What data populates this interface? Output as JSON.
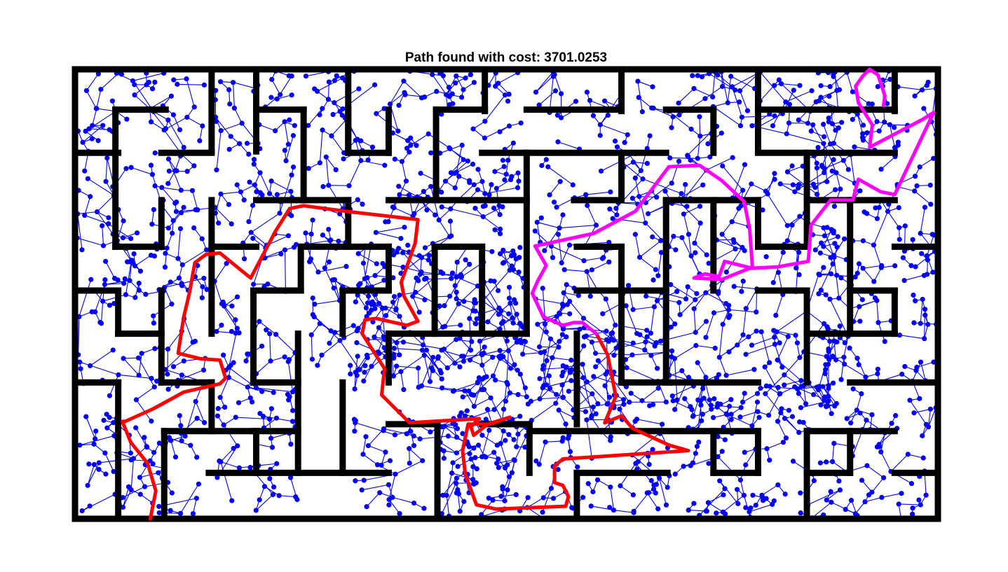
{
  "chart_data": {
    "type": "scatter",
    "title": "Path found with cost: 3701.0253",
    "xlabel": "",
    "ylabel": "",
    "xlim": [
      0,
      1238
    ],
    "ylim": [
      0,
      646
    ],
    "grid": false,
    "colors": {
      "walls": "#000000",
      "tree": "#0000ff",
      "path_start": "#ff0000",
      "path_goal": "#ff00ff"
    },
    "maze_walls": [
      [
        [
          0,
          0
        ],
        [
          1238,
          0
        ]
      ],
      [
        [
          0,
          646
        ],
        [
          1238,
          646
        ]
      ],
      [
        [
          0,
          0
        ],
        [
          0,
          646
        ]
      ],
      [
        [
          1238,
          0
        ],
        [
          1238,
          646
        ]
      ],
      [
        [
          196,
          0
        ],
        [
          196,
          118
        ]
      ],
      [
        [
          260,
          0
        ],
        [
          260,
          118
        ]
      ],
      [
        [
          392,
          0
        ],
        [
          392,
          118
        ]
      ],
      [
        [
          588,
          0
        ],
        [
          588,
          60
        ]
      ],
      [
        [
          784,
          0
        ],
        [
          784,
          60
        ]
      ],
      [
        [
          980,
          0
        ],
        [
          980,
          118
        ]
      ],
      [
        [
          1176,
          0
        ],
        [
          1176,
          60
        ]
      ],
      [
        [
          0,
          120
        ],
        [
          62,
          120
        ]
      ],
      [
        [
          58,
          58
        ],
        [
          130,
          58
        ]
      ],
      [
        [
          58,
          58
        ],
        [
          58,
          255
        ]
      ],
      [
        [
          124,
          120
        ],
        [
          196,
          120
        ]
      ],
      [
        [
          260,
          58
        ],
        [
          328,
          58
        ]
      ],
      [
        [
          328,
          58
        ],
        [
          328,
          188
        ]
      ],
      [
        [
          392,
          58
        ],
        [
          392,
          120
        ]
      ],
      [
        [
          450,
          58
        ],
        [
          450,
          120
        ]
      ],
      [
        [
          392,
          120
        ],
        [
          450,
          120
        ]
      ],
      [
        [
          518,
          58
        ],
        [
          588,
          58
        ]
      ],
      [
        [
          518,
          58
        ],
        [
          518,
          188
        ]
      ],
      [
        [
          648,
          58
        ],
        [
          784,
          58
        ]
      ],
      [
        [
          980,
          58
        ],
        [
          1176,
          58
        ]
      ],
      [
        [
          848,
          58
        ],
        [
          916,
          58
        ]
      ],
      [
        [
          916,
          58
        ],
        [
          916,
          120
        ]
      ],
      [
        [
          584,
          120
        ],
        [
          848,
          120
        ]
      ],
      [
        [
          784,
          120
        ],
        [
          784,
          188
        ]
      ],
      [
        [
          980,
          120
        ],
        [
          1176,
          120
        ]
      ],
      [
        [
          1050,
          120
        ],
        [
          1050,
          250
        ]
      ],
      [
        [
          124,
          188
        ],
        [
          124,
          255
        ]
      ],
      [
        [
          196,
          188
        ],
        [
          196,
          255
        ]
      ],
      [
        [
          58,
          255
        ],
        [
          124,
          255
        ]
      ],
      [
        [
          196,
          255
        ],
        [
          260,
          255
        ]
      ],
      [
        [
          260,
          188
        ],
        [
          392,
          188
        ]
      ],
      [
        [
          392,
          188
        ],
        [
          392,
          255
        ]
      ],
      [
        [
          450,
          188
        ],
        [
          648,
          188
        ]
      ],
      [
        [
          648,
          120
        ],
        [
          648,
          380
        ]
      ],
      [
        [
          716,
          188
        ],
        [
          784,
          188
        ]
      ],
      [
        [
          848,
          188
        ],
        [
          848,
          250
        ]
      ],
      [
        [
          848,
          188
        ],
        [
          980,
          188
        ]
      ],
      [
        [
          980,
          188
        ],
        [
          980,
          250
        ]
      ],
      [
        [
          1050,
          188
        ],
        [
          1176,
          188
        ]
      ],
      [
        [
          1112,
          188
        ],
        [
          1112,
          380
        ]
      ],
      [
        [
          0,
          318
        ],
        [
          62,
          318
        ]
      ],
      [
        [
          62,
          318
        ],
        [
          62,
          380
        ]
      ],
      [
        [
          124,
          318
        ],
        [
          124,
          450
        ]
      ],
      [
        [
          196,
          255
        ],
        [
          196,
          318
        ]
      ],
      [
        [
          324,
          255
        ],
        [
          450,
          255
        ]
      ],
      [
        [
          324,
          255
        ],
        [
          324,
          318
        ]
      ],
      [
        [
          450,
          255
        ],
        [
          450,
          318
        ]
      ],
      [
        [
          516,
          255
        ],
        [
          516,
          380
        ]
      ],
      [
        [
          516,
          255
        ],
        [
          584,
          255
        ]
      ],
      [
        [
          584,
          255
        ],
        [
          584,
          380
        ]
      ],
      [
        [
          720,
          255
        ],
        [
          784,
          255
        ]
      ],
      [
        [
          784,
          255
        ],
        [
          784,
          450
        ]
      ],
      [
        [
          848,
          255
        ],
        [
          848,
          318
        ]
      ],
      [
        [
          720,
          318
        ],
        [
          848,
          318
        ]
      ],
      [
        [
          916,
          188
        ],
        [
          916,
          318
        ]
      ],
      [
        [
          980,
          255
        ],
        [
          1050,
          255
        ]
      ],
      [
        [
          1176,
          255
        ],
        [
          1238,
          255
        ]
      ],
      [
        [
          1112,
          318
        ],
        [
          1176,
          318
        ]
      ],
      [
        [
          1176,
          318
        ],
        [
          1176,
          380
        ]
      ],
      [
        [
          62,
          380
        ],
        [
          124,
          380
        ]
      ],
      [
        [
          196,
          318
        ],
        [
          196,
          380
        ]
      ],
      [
        [
          256,
          318
        ],
        [
          324,
          318
        ]
      ],
      [
        [
          256,
          318
        ],
        [
          256,
          450
        ]
      ],
      [
        [
          384,
          318
        ],
        [
          450,
          318
        ]
      ],
      [
        [
          384,
          318
        ],
        [
          384,
          380
        ]
      ],
      [
        [
          450,
          380
        ],
        [
          648,
          380
        ]
      ],
      [
        [
          450,
          380
        ],
        [
          450,
          450
        ]
      ],
      [
        [
          720,
          380
        ],
        [
          720,
          510
        ]
      ],
      [
        [
          784,
          450
        ],
        [
          980,
          450
        ]
      ],
      [
        [
          848,
          318
        ],
        [
          848,
          450
        ]
      ],
      [
        [
          980,
          318
        ],
        [
          1050,
          318
        ]
      ],
      [
        [
          1050,
          318
        ],
        [
          1050,
          450
        ]
      ],
      [
        [
          1050,
          380
        ],
        [
          1176,
          380
        ]
      ],
      [
        [
          1112,
          450
        ],
        [
          1238,
          450
        ]
      ],
      [
        [
          0,
          450
        ],
        [
          62,
          450
        ]
      ],
      [
        [
          62,
          450
        ],
        [
          62,
          646
        ]
      ],
      [
        [
          124,
          450
        ],
        [
          196,
          450
        ]
      ],
      [
        [
          196,
          450
        ],
        [
          196,
          520
        ]
      ],
      [
        [
          256,
          450
        ],
        [
          320,
          450
        ]
      ],
      [
        [
          320,
          380
        ],
        [
          320,
          580
        ]
      ],
      [
        [
          384,
          450
        ],
        [
          384,
          580
        ]
      ],
      [
        [
          256,
          520
        ],
        [
          320,
          520
        ]
      ],
      [
        [
          450,
          510
        ],
        [
          520,
          510
        ]
      ],
      [
        [
          520,
          510
        ],
        [
          520,
          646
        ]
      ],
      [
        [
          584,
          510
        ],
        [
          652,
          510
        ]
      ],
      [
        [
          652,
          510
        ],
        [
          652,
          580
        ]
      ],
      [
        [
          128,
          520
        ],
        [
          260,
          520
        ]
      ],
      [
        [
          128,
          520
        ],
        [
          128,
          646
        ]
      ],
      [
        [
          260,
          520
        ],
        [
          260,
          580
        ]
      ],
      [
        [
          192,
          580
        ],
        [
          450,
          580
        ]
      ],
      [
        [
          652,
          520
        ],
        [
          980,
          520
        ]
      ],
      [
        [
          720,
          580
        ],
        [
          720,
          646
        ]
      ],
      [
        [
          720,
          580
        ],
        [
          850,
          580
        ]
      ],
      [
        [
          916,
          520
        ],
        [
          916,
          580
        ]
      ],
      [
        [
          980,
          520
        ],
        [
          980,
          580
        ]
      ],
      [
        [
          916,
          580
        ],
        [
          980,
          580
        ]
      ],
      [
        [
          1050,
          520
        ],
        [
          1176,
          520
        ]
      ],
      [
        [
          1050,
          520
        ],
        [
          1050,
          646
        ]
      ],
      [
        [
          1050,
          580
        ],
        [
          1112,
          580
        ]
      ],
      [
        [
          1176,
          580
        ],
        [
          1238,
          580
        ]
      ],
      [
        [
          1112,
          520
        ],
        [
          1112,
          580
        ]
      ]
    ],
    "series": [
      {
        "values": [
          [
            108,
            646
          ],
          [
            116,
            606
          ],
          [
            104,
            566
          ],
          [
            80,
            536
          ],
          [
            68,
            506
          ],
          [
            72,
            506
          ],
          [
            112,
            488
          ],
          [
            156,
            464
          ],
          [
            208,
            452
          ],
          [
            216,
            444
          ],
          [
            208,
            418
          ],
          [
            180,
            416
          ],
          [
            148,
            408
          ],
          [
            156,
            356
          ],
          [
            164,
            322
          ],
          [
            172,
            278
          ],
          [
            188,
            266
          ],
          [
            208,
            264
          ],
          [
            252,
            300
          ],
          [
            288,
            232
          ],
          [
            308,
            200
          ],
          [
            328,
            196
          ],
          [
            388,
            204
          ],
          [
            492,
            216
          ],
          [
            488,
            250
          ],
          [
            468,
            306
          ],
          [
            472,
            326
          ],
          [
            492,
            362
          ],
          [
            476,
            368
          ],
          [
            432,
            358
          ],
          [
            416,
            360
          ],
          [
            412,
            380
          ],
          [
            444,
            430
          ],
          [
            440,
            468
          ],
          [
            464,
            492
          ],
          [
            480,
            508
          ],
          [
            580,
            502
          ],
          [
            568,
            514
          ],
          [
            572,
            526
          ],
          [
            592,
            510
          ],
          [
            624,
            500
          ],
          [
            596,
            510
          ],
          [
            564,
            510
          ],
          [
            556,
            548
          ],
          [
            560,
            582
          ],
          [
            576,
            626
          ],
          [
            604,
            632
          ],
          [
            704,
            628
          ],
          [
            708,
            614
          ],
          [
            700,
            598
          ],
          [
            688,
            594
          ],
          [
            688,
            570
          ],
          [
            700,
            560
          ],
          [
            760,
            556
          ],
          [
            880,
            548
          ],
          [
            852,
            540
          ],
          [
            800,
            516
          ],
          [
            784,
            498
          ],
          [
            760,
            508
          ],
          [
            776,
            470
          ],
          [
            772,
            450
          ],
          [
            764,
            410
          ],
          [
            748,
            380
          ]
        ]
      },
      {
        "values": [
          [
            748,
            380
          ],
          [
            728,
            364
          ],
          [
            716,
            364
          ],
          [
            700,
            368
          ],
          [
            672,
            356
          ],
          [
            656,
            322
          ],
          [
            664,
            304
          ],
          [
            676,
            282
          ],
          [
            660,
            254
          ],
          [
            744,
            236
          ],
          [
            804,
            204
          ],
          [
            852,
            140
          ],
          [
            896,
            138
          ],
          [
            928,
            160
          ],
          [
            960,
            190
          ],
          [
            968,
            230
          ],
          [
            972,
            286
          ],
          [
            932,
            276
          ],
          [
            924,
            298
          ],
          [
            904,
            294
          ],
          [
            888,
            300
          ],
          [
            928,
            302
          ],
          [
            968,
            286
          ],
          [
            1008,
            284
          ],
          [
            1052,
            276
          ],
          [
            1056,
            224
          ],
          [
            1084,
            188
          ],
          [
            1116,
            188
          ],
          [
            1124,
            158
          ],
          [
            1156,
            176
          ],
          [
            1176,
            180
          ],
          [
            1232,
            62
          ],
          [
            1216,
            72
          ],
          [
            1140,
            112
          ],
          [
            1144,
            80
          ],
          [
            1124,
            48
          ],
          [
            1120,
            24
          ],
          [
            1130,
            10
          ],
          [
            1140,
            0
          ],
          [
            1152,
            8
          ],
          [
            1162,
            38
          ],
          [
            1160,
            52
          ]
        ]
      }
    ]
  }
}
